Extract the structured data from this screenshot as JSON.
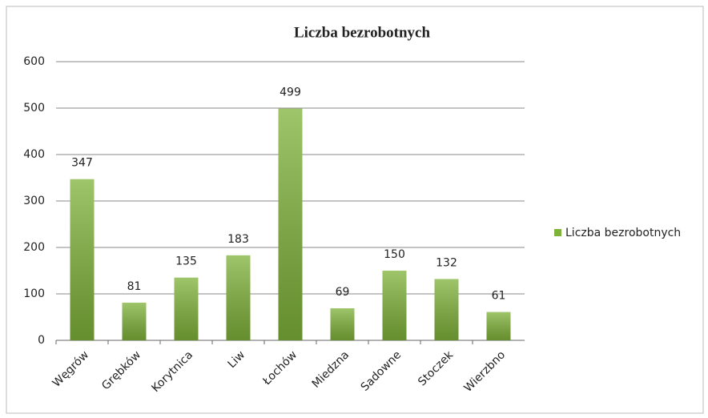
{
  "chart_data": {
    "type": "bar",
    "title": "Liczba bezrobotnych",
    "categories": [
      "Węgrów",
      "Grębków",
      "Korytnica",
      "Liw",
      "Łochów",
      "Miedzna",
      "Sadowne",
      "Stoczek",
      "Wierzbno"
    ],
    "series": [
      {
        "name": "Liczba bezrobotnych",
        "color": "#7fb23a",
        "values": [
          347,
          81,
          135,
          183,
          499,
          69,
          150,
          132,
          61
        ]
      }
    ],
    "ylim": [
      0,
      600
    ],
    "yticks": [
      0,
      100,
      200,
      300,
      400,
      500,
      600
    ],
    "grid": true,
    "legend": "right"
  }
}
